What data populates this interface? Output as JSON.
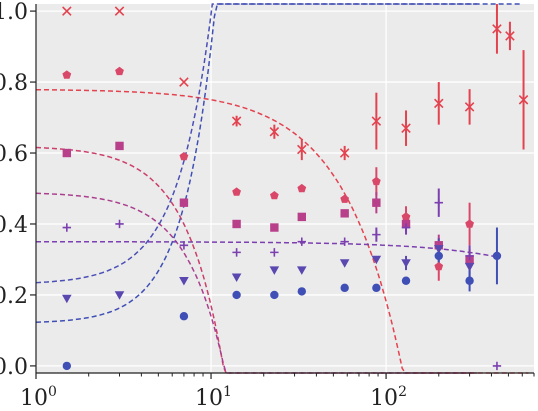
{
  "chart_data": {
    "type": "scatter",
    "title": "",
    "xlabel": "",
    "ylabel": "",
    "xscale": "log",
    "xlim": [
      1,
      700
    ],
    "ylim": [
      -0.02,
      1.02
    ],
    "grid": true,
    "legend": "none",
    "background": "#ebebeb",
    "x_ticks": [
      {
        "value": 1,
        "base": "10",
        "exp": "0"
      },
      {
        "value": 10,
        "base": "10",
        "exp": "1"
      },
      {
        "value": 100,
        "base": "10",
        "exp": "2"
      }
    ],
    "y_ticks": [
      {
        "value": 0.0,
        "label": "0.0"
      },
      {
        "value": 0.2,
        "label": "0.2"
      },
      {
        "value": 0.4,
        "label": "0.4"
      },
      {
        "value": 0.6,
        "label": "0.6"
      },
      {
        "value": 0.8,
        "label": "0.8"
      },
      {
        "value": 1.0,
        "label": "1.0"
      }
    ],
    "series": [
      {
        "marker": "x",
        "color": "#e3424f",
        "points": [
          {
            "x": 1.5,
            "y": 1.0
          },
          {
            "x": 3,
            "y": 1.0
          },
          {
            "x": 7,
            "y": 0.8
          },
          {
            "x": 14,
            "y": 0.69,
            "err": 0.015
          },
          {
            "x": 23,
            "y": 0.66,
            "err": 0.02
          },
          {
            "x": 33,
            "y": 0.61,
            "err": 0.03
          },
          {
            "x": 58,
            "y": 0.6,
            "err": 0.02
          },
          {
            "x": 88,
            "y": 0.69,
            "err": 0.08
          },
          {
            "x": 130,
            "y": 0.67,
            "err": 0.05
          },
          {
            "x": 200,
            "y": 0.74,
            "err": 0.06
          },
          {
            "x": 300,
            "y": 0.73,
            "err": 0.05
          },
          {
            "x": 430,
            "y": 0.95,
            "err": 0.07
          },
          {
            "x": 510,
            "y": 0.93,
            "err": 0.04
          },
          {
            "x": 610,
            "y": 0.75,
            "err": 0.14
          }
        ]
      },
      {
        "marker": "pentagon",
        "color": "#d94868",
        "points": [
          {
            "x": 1.5,
            "y": 0.82
          },
          {
            "x": 3,
            "y": 0.83
          },
          {
            "x": 7,
            "y": 0.59
          },
          {
            "x": 14,
            "y": 0.49
          },
          {
            "x": 23,
            "y": 0.48
          },
          {
            "x": 33,
            "y": 0.5
          },
          {
            "x": 58,
            "y": 0.47
          },
          {
            "x": 88,
            "y": 0.52,
            "err": 0.04
          },
          {
            "x": 130,
            "y": 0.42,
            "err": 0.03
          },
          {
            "x": 200,
            "y": 0.28,
            "err": 0.04
          },
          {
            "x": 300,
            "y": 0.4,
            "err": 0.06
          }
        ]
      },
      {
        "marker": "square",
        "color": "#b8408a",
        "points": [
          {
            "x": 1.5,
            "y": 0.6
          },
          {
            "x": 3,
            "y": 0.62
          },
          {
            "x": 7,
            "y": 0.46
          },
          {
            "x": 14,
            "y": 0.4
          },
          {
            "x": 23,
            "y": 0.39
          },
          {
            "x": 33,
            "y": 0.42
          },
          {
            "x": 58,
            "y": 0.43
          },
          {
            "x": 88,
            "y": 0.46,
            "err": 0.03
          },
          {
            "x": 130,
            "y": 0.4,
            "err": 0.02
          },
          {
            "x": 200,
            "y": 0.34,
            "err": 0.03
          },
          {
            "x": 300,
            "y": 0.3,
            "err": 0.03
          }
        ]
      },
      {
        "marker": "plus",
        "color": "#7b3fb0",
        "points": [
          {
            "x": 1.5,
            "y": 0.39
          },
          {
            "x": 3,
            "y": 0.4
          },
          {
            "x": 7,
            "y": 0.34
          },
          {
            "x": 14,
            "y": 0.32
          },
          {
            "x": 23,
            "y": 0.32
          },
          {
            "x": 33,
            "y": 0.35
          },
          {
            "x": 58,
            "y": 0.35
          },
          {
            "x": 88,
            "y": 0.37,
            "err": 0.02
          },
          {
            "x": 130,
            "y": 0.39,
            "err": 0.02
          },
          {
            "x": 200,
            "y": 0.46,
            "err": 0.04
          },
          {
            "x": 300,
            "y": 0.31,
            "err": 0.03
          },
          {
            "x": 430,
            "y": 0.0
          }
        ]
      },
      {
        "marker": "triangle-down",
        "color": "#5a48b0",
        "points": [
          {
            "x": 1.5,
            "y": 0.19
          },
          {
            "x": 3,
            "y": 0.2
          },
          {
            "x": 7,
            "y": 0.24
          },
          {
            "x": 14,
            "y": 0.25
          },
          {
            "x": 23,
            "y": 0.27
          },
          {
            "x": 33,
            "y": 0.27
          },
          {
            "x": 58,
            "y": 0.29
          },
          {
            "x": 88,
            "y": 0.3
          },
          {
            "x": 130,
            "y": 0.29,
            "err": 0.02
          },
          {
            "x": 200,
            "y": 0.33,
            "err": 0.03
          },
          {
            "x": 300,
            "y": 0.28,
            "err": 0.03
          }
        ]
      },
      {
        "marker": "circle",
        "color": "#3f4fb5",
        "points": [
          {
            "x": 1.5,
            "y": 0.0
          },
          {
            "x": 7,
            "y": 0.14
          },
          {
            "x": 14,
            "y": 0.2
          },
          {
            "x": 23,
            "y": 0.2
          },
          {
            "x": 33,
            "y": 0.21
          },
          {
            "x": 58,
            "y": 0.22
          },
          {
            "x": 88,
            "y": 0.22
          },
          {
            "x": 130,
            "y": 0.24
          },
          {
            "x": 200,
            "y": 0.31,
            "err": 0.03
          },
          {
            "x": 300,
            "y": 0.24,
            "err": 0.03
          },
          {
            "x": 430,
            "y": 0.31,
            "err": 0.08
          }
        ]
      }
    ],
    "fit_curves": [
      {
        "color": "#e3424f",
        "a": 0.78,
        "k": 0.0015,
        "p": 1.3,
        "x_max": 650
      },
      {
        "color": "#cc3f6a",
        "a": 0.62,
        "k": 0.0045,
        "p": 2.0,
        "x_max": 330
      },
      {
        "color": "#aa3f8e",
        "a": 0.49,
        "k": 0.0035,
        "p": 2.0,
        "x_max": 330
      },
      {
        "color": "#7b3fb0",
        "a": 0.35,
        "k": 0.0001,
        "p": 1.0,
        "x_max": 430
      },
      {
        "color": "#4a4fb5",
        "a": 0.23,
        "k": 0.0048,
        "p": 2.2,
        "x_max": 330
      },
      {
        "color": "#3f4fb5",
        "a": 0.12,
        "k": 0.0031,
        "p": 2.4,
        "x_max": 580
      }
    ]
  }
}
